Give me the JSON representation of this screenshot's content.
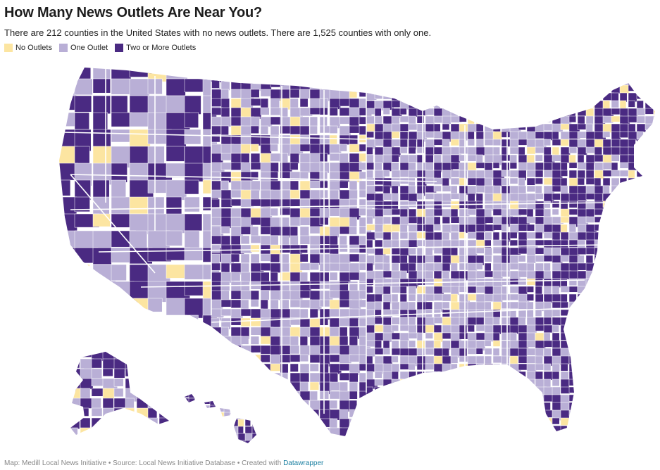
{
  "title": "How Many News Outlets Are Near You?",
  "subtitle": "There are 212 counties in the United States with no news outlets. There are 1,525 counties with only one.",
  "legend": [
    {
      "label": "No Outlets",
      "color": "#fce5a1"
    },
    {
      "label": "One Outlet",
      "color": "#b9afd6"
    },
    {
      "label": "Two or More Outlets",
      "color": "#4a2a82"
    }
  ],
  "footer": {
    "prefix": "Map: Medill Local News Initiative • Source: Local News Initiative Database • Created with ",
    "link": "Datawrapper"
  },
  "colors": {
    "none": "#fce5a1",
    "one": "#b9afd6",
    "two_plus": "#4a2a82",
    "border": "#ffffff"
  }
}
